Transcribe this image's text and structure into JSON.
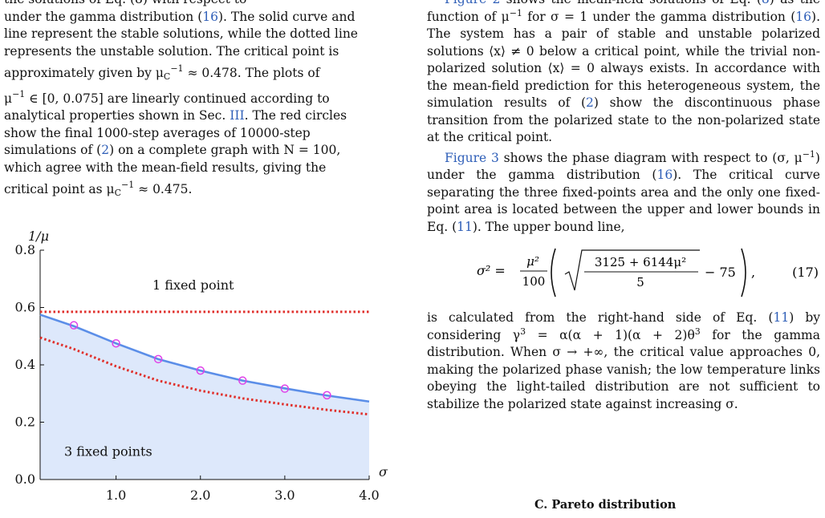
{
  "left_column": {
    "caption_partial_line": "the solutions of Eq. (8) with respect to",
    "caption_lines": [
      [
        "under the gamma distribution (",
        "16",
        "). The solid curve and"
      ],
      [
        "line represent the stable solutions, while the dotted line"
      ],
      [
        "represents the unstable solution. The critical point is"
      ],
      [
        "approximately given by μ",
        "C",
        "−1",
        " ≈ 0.478. The plots of"
      ],
      [
        "μ",
        "−1",
        " ∈ [0, 0.075] are linearly continued according to"
      ],
      [
        "analytical properties shown in Sec. ",
        "III",
        ". The red circles"
      ],
      [
        "show the final 1000-step averages of 10000-step"
      ],
      [
        "simulations of (",
        "2",
        ") on a complete graph with N = 100,"
      ],
      [
        "which agree with the mean-field results, giving the"
      ],
      [
        "critical point as μ",
        "C",
        "−1",
        " ≈ 0.475."
      ]
    ]
  },
  "right_column": {
    "para1": [
      {
        "t": "Figure 2",
        "link": true
      },
      {
        "t": " shows the mean-field solutions of Eq. ("
      },
      {
        "t": "8",
        "link": true
      },
      {
        "t": ") as the function of μ"
      },
      {
        "t": "−1",
        "sup": true
      },
      {
        "t": " for σ = 1 under the gamma distribution ("
      },
      {
        "t": "16",
        "link": true
      },
      {
        "t": "). The system has a pair of stable and unstable polarized solutions ⟨x⟩ ≠ 0 below a critical point, while the trivial non-polarized solution ⟨x⟩ = 0 always exists. In accordance with the mean-field prediction for this heterogeneous system, the simulation results of ("
      },
      {
        "t": "2",
        "link": true
      },
      {
        "t": ") show the discontinuous phase transition from the polarized state to the non-polarized state at the critical point."
      }
    ],
    "para2": [
      {
        "t": "Figure 3",
        "link": true
      },
      {
        "t": " shows the phase diagram with respect to (σ, μ"
      },
      {
        "t": "−1",
        "sup": true
      },
      {
        "t": ") under the gamma distribution ("
      },
      {
        "t": "16",
        "link": true
      },
      {
        "t": "). The critical curve separating the three fixed-points area and the only one fixed-point area is located between the upper and lower bounds in Eq. ("
      },
      {
        "t": "11",
        "link": true
      },
      {
        "t": "). The upper bound line,"
      }
    ],
    "equation": {
      "lhs": "σ² =",
      "frac_num": "μ²",
      "frac_den": "100",
      "sqrt_num": "3125 + 6144μ²",
      "sqrt_den": "5",
      "tail": "− 75",
      "number": "(17)"
    },
    "para3": [
      {
        "t": "is calculated from the right-hand side of Eq. ("
      },
      {
        "t": "11",
        "link": true
      },
      {
        "t": ") by considering γ"
      },
      {
        "t": "3",
        "sup": true
      },
      {
        "t": " = α(α + 1)(α + 2)θ"
      },
      {
        "t": "3",
        "sup": true
      },
      {
        "t": " for the gamma distribution. When σ → +∞, the critical value approaches 0, making the polarized phase vanish; the low temperature links obeying the light-tailed distribution are not sufficient to stabilize the polarized state against increasing σ."
      }
    ],
    "section_heading": "C.   Pareto distribution"
  },
  "chart_data": {
    "type": "line",
    "xlabel": "σ",
    "ylabel": "1/μ",
    "xlim": [
      0.1,
      4.0
    ],
    "ylim": [
      0.0,
      0.8
    ],
    "xticks": [
      "1.0",
      "2.0",
      "3.0",
      "4.0"
    ],
    "yticks": [
      "0.0",
      "0.2",
      "0.4",
      "0.6",
      "0.8"
    ],
    "region_labels": [
      "1 fixed point",
      "3 fixed points"
    ],
    "series": [
      {
        "style": "critical-curve",
        "x": [
          0.1,
          0.5,
          1.0,
          1.5,
          2.0,
          2.5,
          3.0,
          3.5,
          4.0
        ],
        "y": [
          0.575,
          0.535,
          0.475,
          0.42,
          0.38,
          0.345,
          0.318,
          0.293,
          0.272
        ]
      },
      {
        "style": "upper-bound",
        "x": [
          0.1,
          4.0
        ],
        "y": [
          0.585,
          0.585
        ]
      },
      {
        "style": "lower-bound",
        "x": [
          0.1,
          0.5,
          1.0,
          1.5,
          2.0,
          2.5,
          3.0,
          3.5,
          4.0
        ],
        "y": [
          0.495,
          0.455,
          0.395,
          0.345,
          0.31,
          0.283,
          0.262,
          0.243,
          0.227
        ]
      },
      {
        "style": "simulation-points",
        "x": [
          0.5,
          1.0,
          1.5,
          2.0,
          2.5,
          3.0,
          3.5
        ],
        "y": [
          0.538,
          0.475,
          0.42,
          0.38,
          0.345,
          0.317,
          0.294
        ]
      }
    ],
    "colors": {
      "curve": "#5b8ee8",
      "bound": "#e0302c",
      "points": "#e040e8",
      "fill": "#dde8fb"
    }
  }
}
